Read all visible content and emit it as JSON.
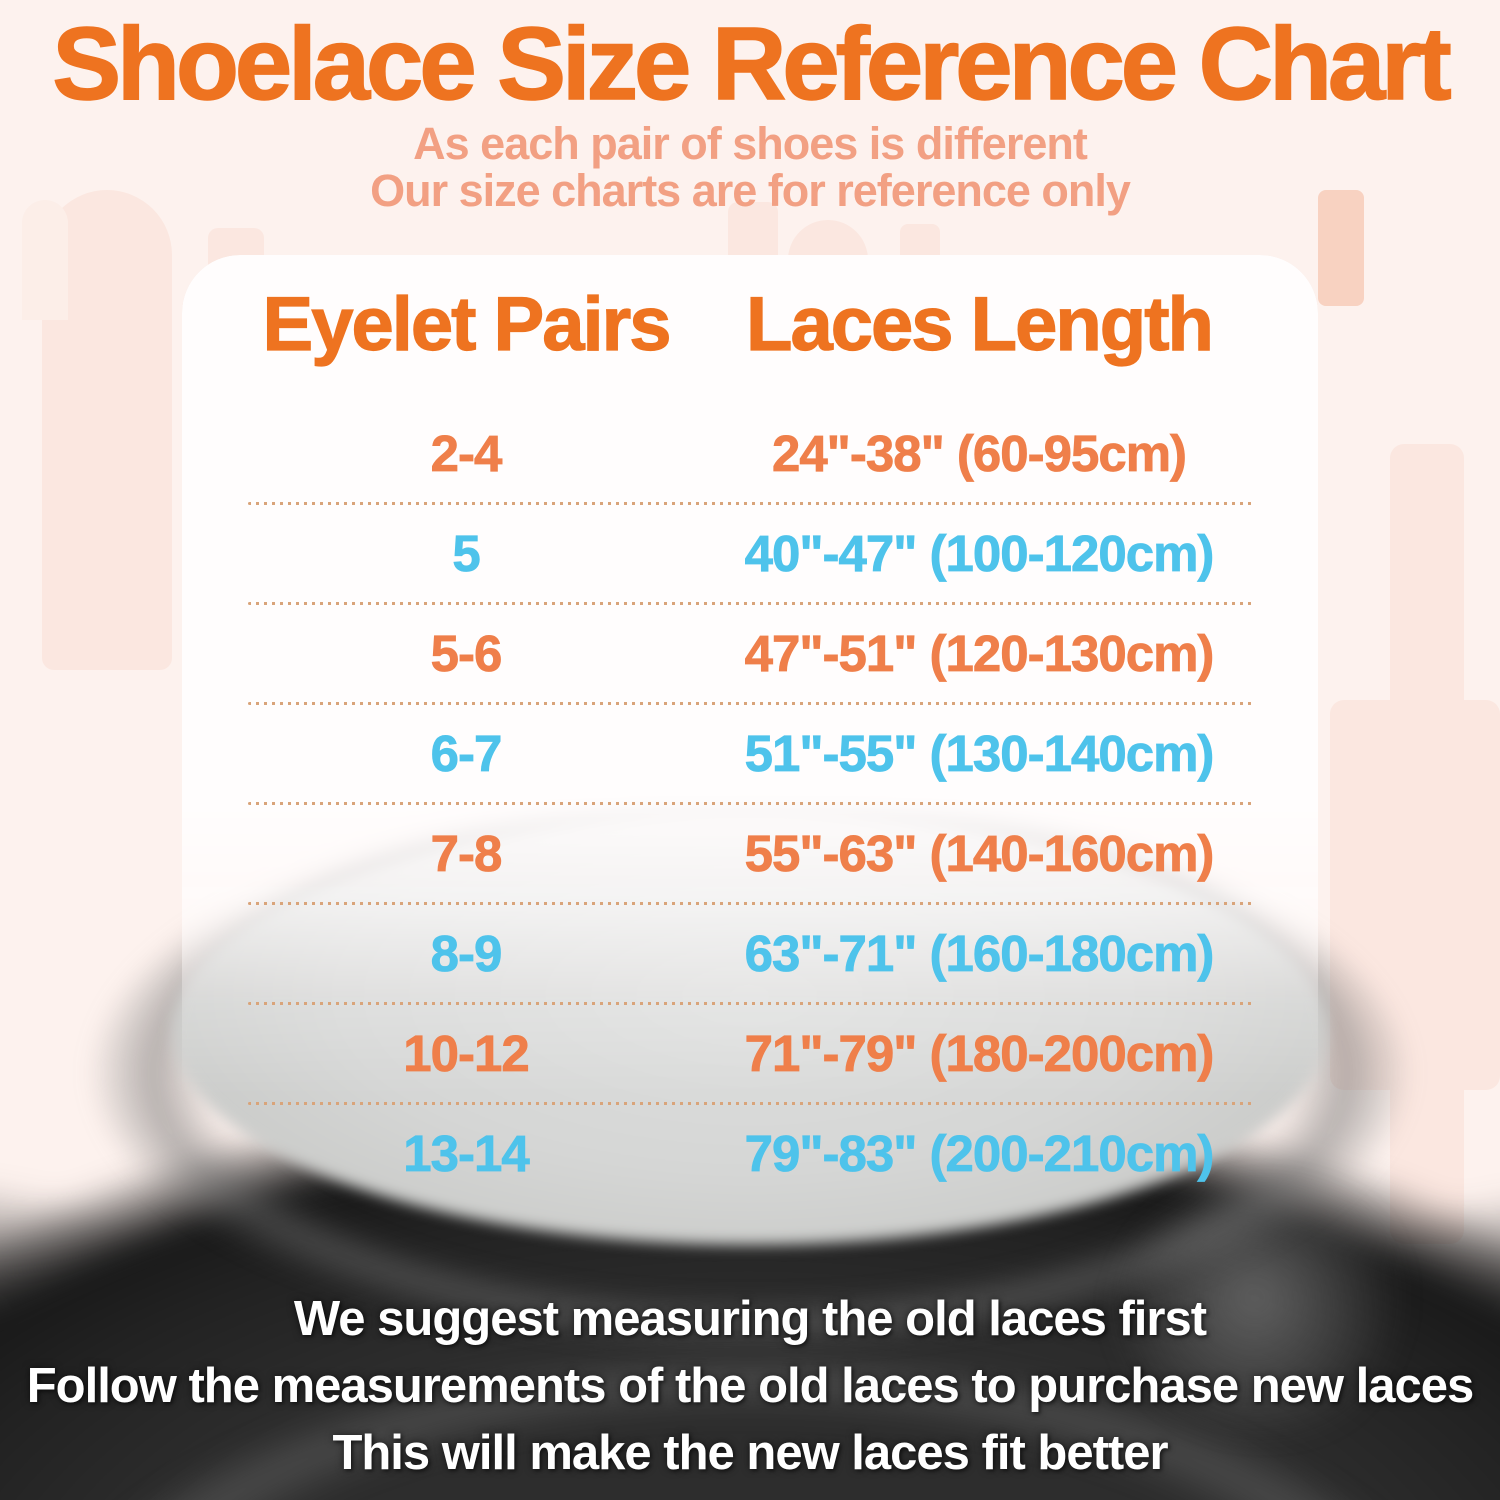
{
  "header": {
    "title": "Shoelace Size Reference Chart",
    "subtitle_lines": [
      "As each pair of shoes is different",
      "Our size charts are for reference only"
    ]
  },
  "table": {
    "headers": [
      "Eyelet Pairs",
      "Laces Length"
    ],
    "rows": [
      {
        "eyelet_pairs": "2-4",
        "laces_length": "24\"-38\" (60-95cm)",
        "color": "orange"
      },
      {
        "eyelet_pairs": "5",
        "laces_length": "40\"-47\" (100-120cm)",
        "color": "blue"
      },
      {
        "eyelet_pairs": "5-6",
        "laces_length": "47\"-51\" (120-130cm)",
        "color": "orange"
      },
      {
        "eyelet_pairs": "6-7",
        "laces_length": "51\"-55\" (130-140cm)",
        "color": "blue"
      },
      {
        "eyelet_pairs": "7-8",
        "laces_length": "55\"-63\" (140-160cm)",
        "color": "orange"
      },
      {
        "eyelet_pairs": "8-9",
        "laces_length": "63\"-71\" (160-180cm)",
        "color": "blue"
      },
      {
        "eyelet_pairs": "10-12",
        "laces_length": "71\"-79\" (180-200cm)",
        "color": "orange"
      },
      {
        "eyelet_pairs": "13-14",
        "laces_length": "79\"-83\" (200-210cm)",
        "color": "blue"
      }
    ]
  },
  "footer": {
    "lines": [
      "We suggest measuring the old laces first",
      "Follow the measurements of the old laces to purchase new laces",
      "This will make the new laces fit better"
    ]
  },
  "colors": {
    "title_orange": "#ee7320",
    "subtitle_salmon": "#f2a083",
    "row_orange": "#ef7f4a",
    "row_blue": "#4ec3eb",
    "divider_dotted": "#d9a47a",
    "background_pink": "#fdf2ee",
    "footer_white": "#ffffff"
  },
  "chart_data": {
    "type": "table",
    "title": "Shoelace Size Reference Chart",
    "subtitle": "As each pair of shoes is different. Our size charts are for reference only",
    "columns": [
      "Eyelet Pairs",
      "Laces Length"
    ],
    "rows": [
      [
        "2-4",
        "24\"-38\" (60-95cm)"
      ],
      [
        "5",
        "40\"-47\" (100-120cm)"
      ],
      [
        "5-6",
        "47\"-51\" (120-130cm)"
      ],
      [
        "6-7",
        "51\"-55\" (130-140cm)"
      ],
      [
        "7-8",
        "55\"-63\" (140-160cm)"
      ],
      [
        "8-9",
        "63\"-71\" (160-180cm)"
      ],
      [
        "10-12",
        "71\"-79\" (180-200cm)"
      ],
      [
        "13-14",
        "79\"-83\" (200-210cm)"
      ]
    ],
    "notes": [
      "We suggest measuring the old laces first",
      "Follow the measurements of the old laces to purchase new laces",
      "This will make the new laces fit better"
    ]
  }
}
